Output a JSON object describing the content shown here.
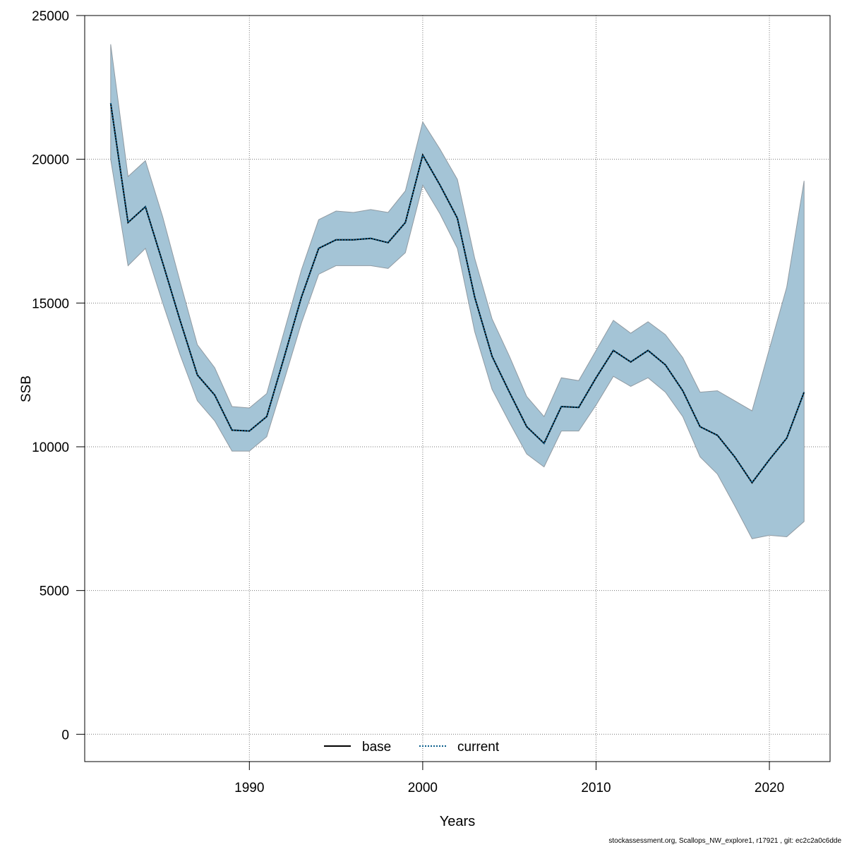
{
  "chart_data": {
    "type": "line",
    "title": "",
    "xlabel": "Years",
    "ylabel": "SSB",
    "xlim": [
      1980.5,
      2023.5
    ],
    "ylim": [
      -950,
      25000
    ],
    "xticks": [
      1990,
      2000,
      2010,
      2020
    ],
    "yticks": [
      0,
      5000,
      10000,
      15000,
      20000,
      25000
    ],
    "grid": true,
    "legend_position": "bottom-center",
    "years": [
      1982,
      1983,
      1984,
      1985,
      1986,
      1987,
      1988,
      1989,
      1990,
      1991,
      1992,
      1993,
      1994,
      1995,
      1996,
      1997,
      1998,
      1999,
      2000,
      2001,
      2002,
      2003,
      2004,
      2005,
      2006,
      2007,
      2008,
      2009,
      2010,
      2011,
      2012,
      2013,
      2014,
      2015,
      2016,
      2017,
      2018,
      2019,
      2020,
      2021,
      2022
    ],
    "band": {
      "lower": [
        20000,
        16300,
        16900,
        15000,
        13200,
        11600,
        10900,
        9850,
        9850,
        10350,
        12300,
        14300,
        16000,
        16300,
        16300,
        16300,
        16200,
        16750,
        19100,
        18100,
        16900,
        14000,
        12000,
        10850,
        9750,
        9300,
        10550,
        10550,
        11450,
        12450,
        12100,
        12400,
        11900,
        11050,
        9650,
        9050,
        7950,
        6800,
        6920,
        6870,
        7400
      ],
      "upper": [
        24000,
        19400,
        19950,
        18000,
        15750,
        13550,
        12750,
        11400,
        11350,
        11850,
        14000,
        16150,
        17900,
        18200,
        18150,
        18250,
        18150,
        18900,
        21300,
        20350,
        19300,
        16550,
        14450,
        13150,
        11750,
        11050,
        12400,
        12300,
        13350,
        14400,
        13950,
        14350,
        13900,
        13100,
        11900,
        11950,
        11600,
        11250,
        13400,
        15550,
        19250
      ],
      "color": "#a4c4d6",
      "edge_color": "#909aa2"
    },
    "series": [
      {
        "name": "base",
        "color": "#000000",
        "dash": "solid",
        "values": [
          21950,
          17800,
          18350,
          16400,
          14400,
          12500,
          11800,
          10580,
          10550,
          11050,
          13100,
          15200,
          16900,
          17200,
          17200,
          17250,
          17100,
          17800,
          20150,
          19100,
          17950,
          15200,
          13150,
          11900,
          10700,
          10120,
          11400,
          11370,
          12400,
          13350,
          12950,
          13350,
          12850,
          11950,
          10700,
          10400,
          9650,
          8750,
          9550,
          10300,
          11900
        ]
      },
      {
        "name": "current",
        "color": "#0b5e8c",
        "dash": "dotted",
        "values": [
          21950,
          17800,
          18350,
          16400,
          14400,
          12500,
          11800,
          10580,
          10550,
          11050,
          13100,
          15200,
          16900,
          17200,
          17200,
          17250,
          17100,
          17800,
          20150,
          19100,
          17950,
          15200,
          13150,
          11900,
          10700,
          10120,
          11400,
          11370,
          12400,
          13350,
          12950,
          13350,
          12850,
          11950,
          10700,
          10400,
          9650,
          8750,
          9550,
          10300,
          11900
        ]
      }
    ]
  },
  "footer": "stockassessment.org, Scallops_NW_explore1, r17921 , git: ec2c2a0c6dde"
}
